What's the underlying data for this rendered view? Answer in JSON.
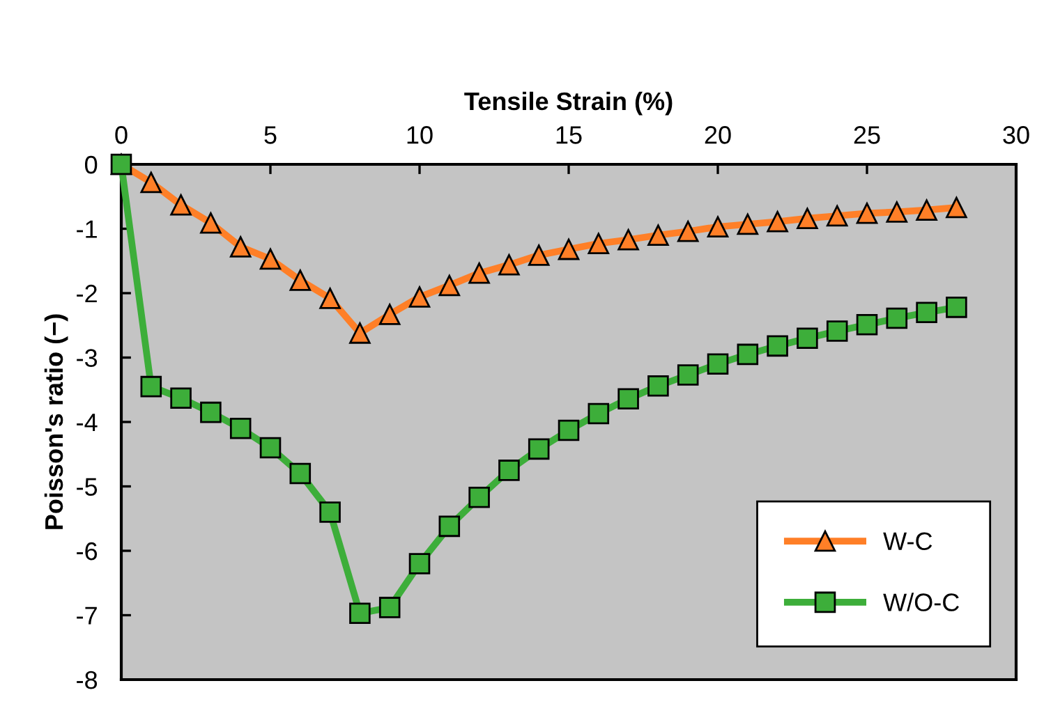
{
  "chart_data": {
    "type": "line",
    "xlabel": "Tensile Strain (%)",
    "ylabel": "Poisson's ratio (−)",
    "x": [
      0,
      1,
      2,
      3,
      4,
      5,
      6,
      7,
      8,
      9,
      10,
      11,
      12,
      13,
      14,
      15,
      16,
      17,
      18,
      19,
      20,
      21,
      22,
      23,
      24,
      25,
      26,
      27,
      28
    ],
    "series": [
      {
        "name": "W-C",
        "color": "#ff7f27",
        "marker": "triangle",
        "values": [
          0,
          -0.28,
          -0.63,
          -0.91,
          -1.28,
          -1.47,
          -1.8,
          -2.08,
          -2.62,
          -2.33,
          -2.06,
          -1.88,
          -1.69,
          -1.56,
          -1.41,
          -1.32,
          -1.23,
          -1.17,
          -1.1,
          -1.04,
          -0.97,
          -0.93,
          -0.89,
          -0.84,
          -0.8,
          -0.76,
          -0.74,
          -0.71,
          -0.67
        ]
      },
      {
        "name": "W/O-C",
        "color": "#3dae3a",
        "marker": "square",
        "values": [
          0,
          -3.45,
          -3.63,
          -3.85,
          -4.1,
          -4.4,
          -4.8,
          -5.4,
          -6.97,
          -6.88,
          -6.2,
          -5.62,
          -5.17,
          -4.75,
          -4.42,
          -4.13,
          -3.87,
          -3.64,
          -3.44,
          -3.27,
          -3.1,
          -2.95,
          -2.82,
          -2.7,
          -2.59,
          -2.49,
          -2.39,
          -2.3,
          -2.22
        ]
      }
    ],
    "xlim": [
      0,
      30
    ],
    "xticks": [
      0,
      5,
      10,
      15,
      20,
      25,
      30
    ],
    "ylim": [
      -8,
      0
    ],
    "yticks": [
      0,
      -1,
      -2,
      -3,
      -4,
      -5,
      -6,
      -7,
      -8
    ],
    "grid": false,
    "legend": "bottom right",
    "line_style": "solid"
  }
}
